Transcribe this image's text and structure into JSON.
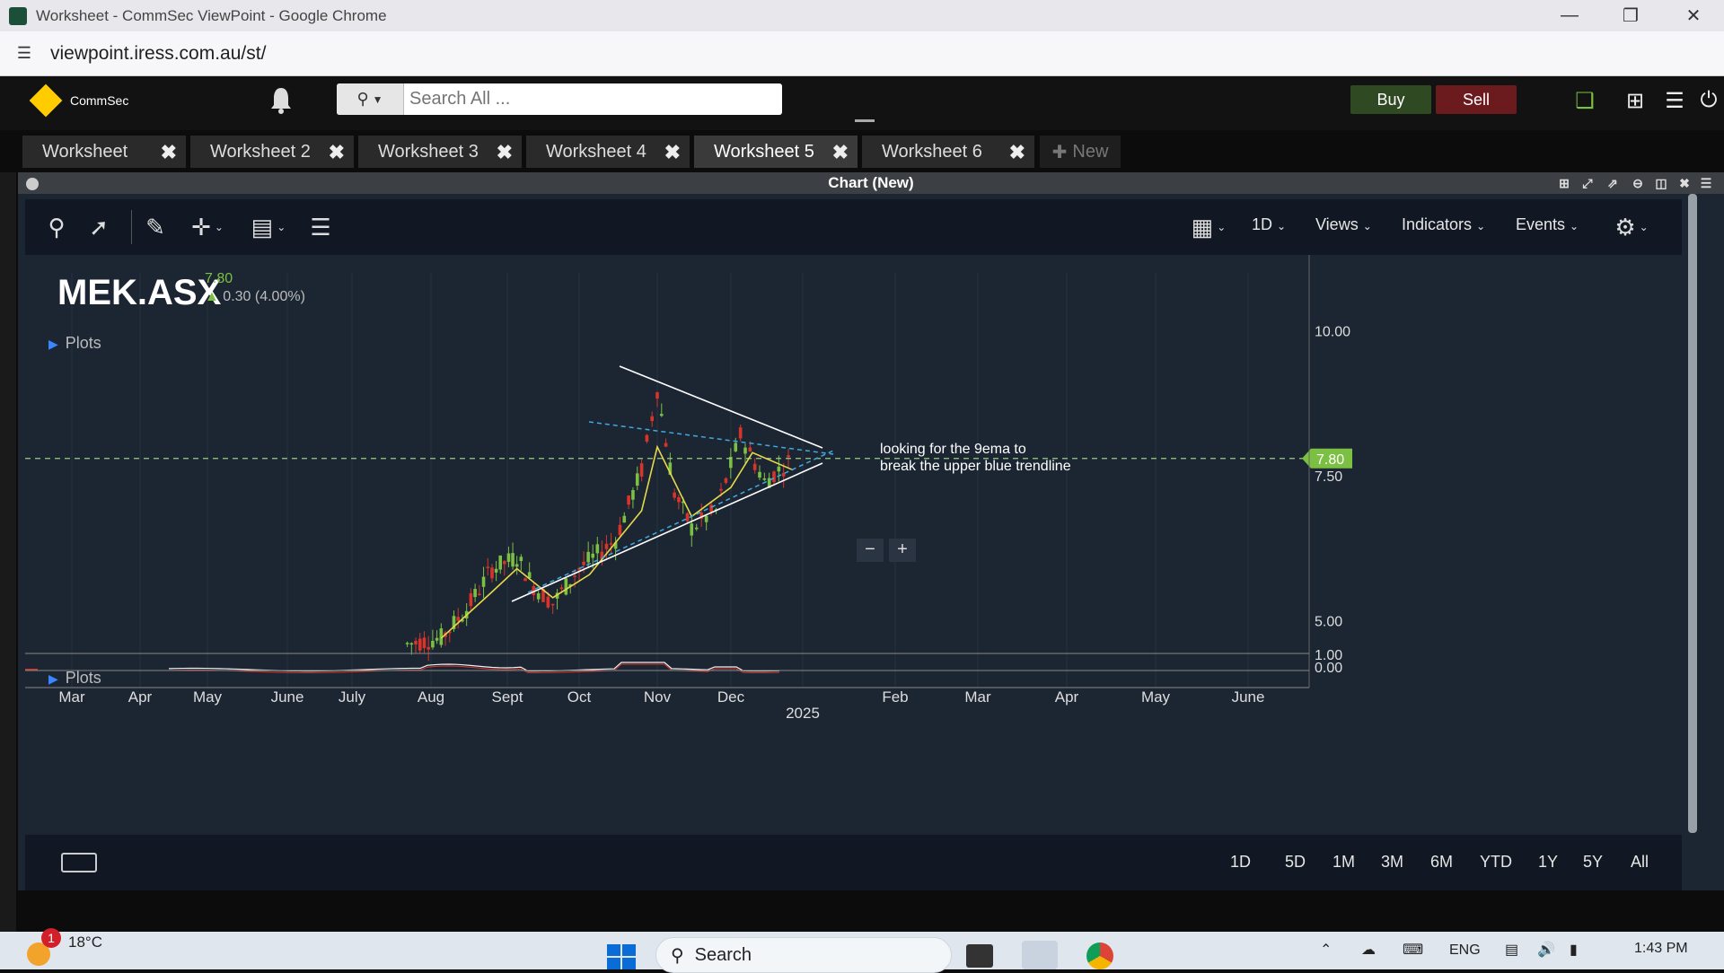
{
  "browser": {
    "window_title": "Worksheet - CommSec ViewPoint - Google Chrome",
    "url": "viewpoint.iress.com.au/st/"
  },
  "header": {
    "logo_text": "CommSec",
    "search_placeholder": "Search All ...",
    "buy_label": "Buy",
    "sell_label": "Sell"
  },
  "tabs": [
    {
      "label": "Worksheet"
    },
    {
      "label": "Worksheet 2"
    },
    {
      "label": "Worksheet 3"
    },
    {
      "label": "Worksheet 4"
    },
    {
      "label": "Worksheet 5",
      "active": true
    },
    {
      "label": "Worksheet 6"
    }
  ],
  "new_tab_label": "New",
  "panel": {
    "title": "Chart (New)"
  },
  "toolbar": {
    "interval": "1D",
    "views": "Views",
    "indicators": "Indicators",
    "events": "Events"
  },
  "quote": {
    "symbol": "MEK.ASX",
    "last": "7.80",
    "change": "0.30 (4.00%)"
  },
  "plots_label": "Plots",
  "plots_label_lower": "Plots",
  "annotation": {
    "line1": "looking for the 9ema to",
    "line2": "break the upper blue trendline"
  },
  "chart_data": {
    "type": "candlestick",
    "symbol": "MEK.ASX",
    "x_ticks": [
      "Mar",
      "Apr",
      "May",
      "June",
      "July",
      "Aug",
      "Sept",
      "Oct",
      "Nov",
      "Dec",
      "2025",
      "Feb",
      "Mar",
      "Apr",
      "May",
      "June"
    ],
    "y_ticks": [
      "10.00",
      "7.50",
      "5.00"
    ],
    "lower_y_ticks": [
      "1.00",
      "0.00"
    ],
    "last_price_label": "7.80",
    "ylim": [
      4.5,
      11.0
    ],
    "series": [
      {
        "values": [
          {
            "x": "Jul 22",
            "y": 4.6
          },
          {
            "x": "Aug 5",
            "y": 4.7
          },
          {
            "x": "Aug 15",
            "y": 5.2
          },
          {
            "x": "Aug 25",
            "y": 5.9
          },
          {
            "x": "Sep 5",
            "y": 6.1
          },
          {
            "x": "Sep 12",
            "y": 5.6
          },
          {
            "x": "Sep 20",
            "y": 5.3
          },
          {
            "x": "Oct 1",
            "y": 5.9
          },
          {
            "x": "Oct 15",
            "y": 6.4
          },
          {
            "x": "Oct 25",
            "y": 7.6
          },
          {
            "x": "Oct 31",
            "y": 9.0
          },
          {
            "x": "Nov 8",
            "y": 7.2
          },
          {
            "x": "Nov 15",
            "y": 6.6
          },
          {
            "x": "Nov 25",
            "y": 6.9
          },
          {
            "x": "Dec 5",
            "y": 8.2
          },
          {
            "x": "Dec 15",
            "y": 7.4
          },
          {
            "x": "Dec 27",
            "y": 7.8
          }
        ]
      },
      {
        "values": [
          {
            "x": "Aug 5",
            "y": 4.7
          },
          {
            "x": "Aug 25",
            "y": 5.5
          },
          {
            "x": "Sep 5",
            "y": 5.9
          },
          {
            "x": "Sep 20",
            "y": 5.4
          },
          {
            "x": "Oct 5",
            "y": 5.8
          },
          {
            "x": "Oct 25",
            "y": 6.9
          },
          {
            "x": "Nov 1",
            "y": 8.0
          },
          {
            "x": "Nov 15",
            "y": 6.8
          },
          {
            "x": "Dec 1",
            "y": 7.3
          },
          {
            "x": "Dec 10",
            "y": 7.9
          },
          {
            "x": "Dec 27",
            "y": 7.6
          }
        ]
      }
    ]
  },
  "range_buttons": [
    "1D",
    "5D",
    "1M",
    "3M",
    "6M",
    "YTD",
    "1Y",
    "5Y",
    "All"
  ],
  "taskbar": {
    "temperature": "18°C",
    "weather_badge": "1",
    "search_label": "Search",
    "language": "ENG",
    "time": "1:43 PM"
  },
  "colors": {
    "background": "#1c2633",
    "candle_up": "#7cc043",
    "candle_down": "#d8342b",
    "ema": "#e6d84a",
    "trendline_blue": "#3fa9e0",
    "trendline_white": "#ffffff",
    "last_price": "#7cc043"
  }
}
